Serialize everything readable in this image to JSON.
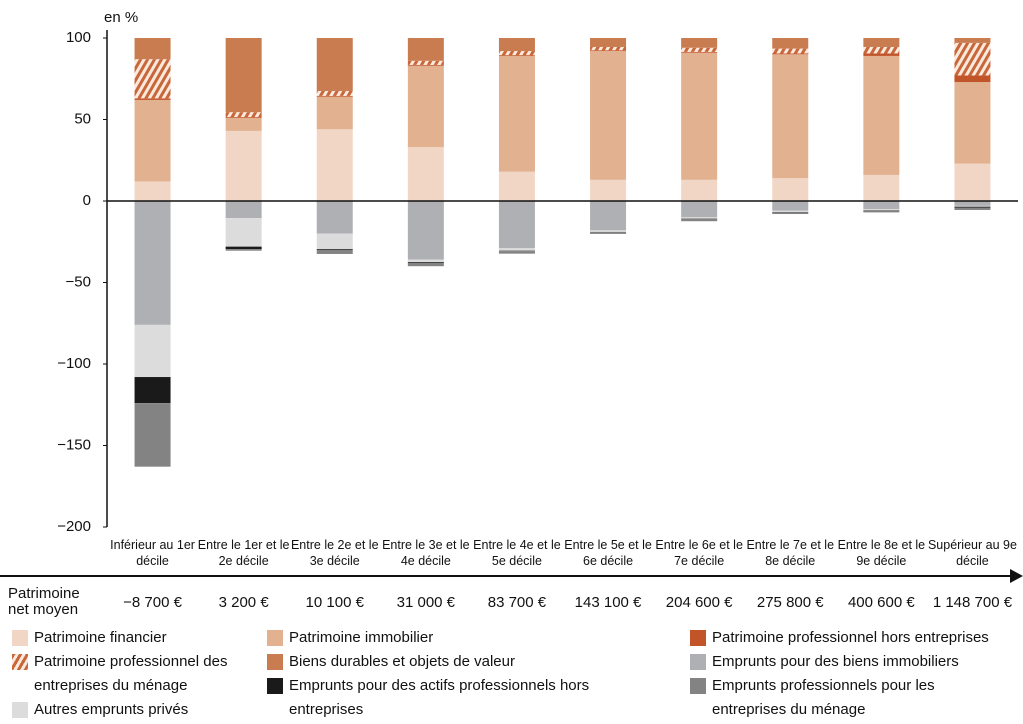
{
  "chart_data": {
    "type": "stacked_bar",
    "y_label": "en %",
    "categories": [
      "Inférieur au 1er décile",
      "Entre le 1er et le 2e décile",
      "Entre le 2e et le 3e décile",
      "Entre le 3e et le 4e décile",
      "Entre le 4e et le 5e décile",
      "Entre le 5e et le 6e décile",
      "Entre le 6e et le 7e décile",
      "Entre le 7e et le 8e décile",
      "Entre le 8e et le 9e décile",
      "Supérieur au 9e décile"
    ],
    "series": [
      {
        "name": "Patrimoine financier",
        "color": "#f2d6c5",
        "values": [
          12,
          43,
          44,
          33,
          18,
          13,
          13,
          14,
          16,
          23
        ]
      },
      {
        "name": "Patrimoine immobilier",
        "color": "#e1b190",
        "values": [
          50,
          8,
          20,
          50,
          71,
          79,
          78,
          76,
          73,
          50
        ]
      },
      {
        "name": "Patrimoine professionnel hors entreprises",
        "color": "#c2542a",
        "values": [
          1,
          0.5,
          0.5,
          0.5,
          0.5,
          0.5,
          0.5,
          0.5,
          1.5,
          4
        ]
      },
      {
        "name": "Patrimoine professionnel des entreprises du ménage",
        "color": "#c8673a",
        "hatch": true,
        "values": [
          24,
          3,
          3,
          2.5,
          2.5,
          2,
          2.5,
          3,
          4,
          20
        ]
      },
      {
        "name": "Biens durables et objets de valeur",
        "color": "#c97c50",
        "values": [
          13,
          45.5,
          32.5,
          14,
          8,
          5.5,
          6,
          6.5,
          5.5,
          3
        ]
      },
      {
        "name": "Emprunts pour des biens immobiliers",
        "color": "#aeb0b3",
        "values": [
          -76,
          -10.5,
          -20,
          -36,
          -29,
          -18,
          -10,
          -6,
          -5,
          -3
        ]
      },
      {
        "name": "Autres emprunts privés",
        "color": "#dcdcdd",
        "values": [
          -32,
          -17.5,
          -9.5,
          -1.5,
          -1.5,
          -1,
          -0.7,
          -0.8,
          -0.7,
          -0.5
        ]
      },
      {
        "name": "Emprunts pour des actifs professionnels hors entreprises",
        "color": "#1a1a1a",
        "values": [
          -16,
          -1.5,
          -0.5,
          -0.5,
          -0.3,
          -0.2,
          -0.2,
          -0.2,
          -0.3,
          -0.5
        ]
      },
      {
        "name": "Emprunts professionnels pour les entreprises du ménage",
        "color": "#838383",
        "values": [
          -39,
          -1,
          -2.5,
          -2,
          -1.5,
          -1,
          -1.5,
          -1,
          -1,
          -1.5
        ]
      }
    ],
    "ylim": [
      -200,
      100
    ],
    "yticks": [
      100,
      50,
      0,
      {
        "value": -50,
        "label": "−50"
      },
      {
        "value": -100,
        "label": "−100"
      },
      {
        "value": -150,
        "label": "−150"
      },
      {
        "value": -200,
        "label": "−200"
      }
    ],
    "grid": false,
    "net_wealth": {
      "label": "Patrimoine net moyen",
      "values": [
        -8700,
        3200,
        10100,
        31000,
        83700,
        143100,
        204600,
        275800,
        400600,
        1148700
      ],
      "value_labels": [
        "−8 700 €",
        "3 200 €",
        "10 100 €",
        "31 000 €",
        "83 700 €",
        "143 100 €",
        "204 600 €",
        "275 800 €",
        "400 600 €",
        "1 148 700 €"
      ]
    }
  }
}
